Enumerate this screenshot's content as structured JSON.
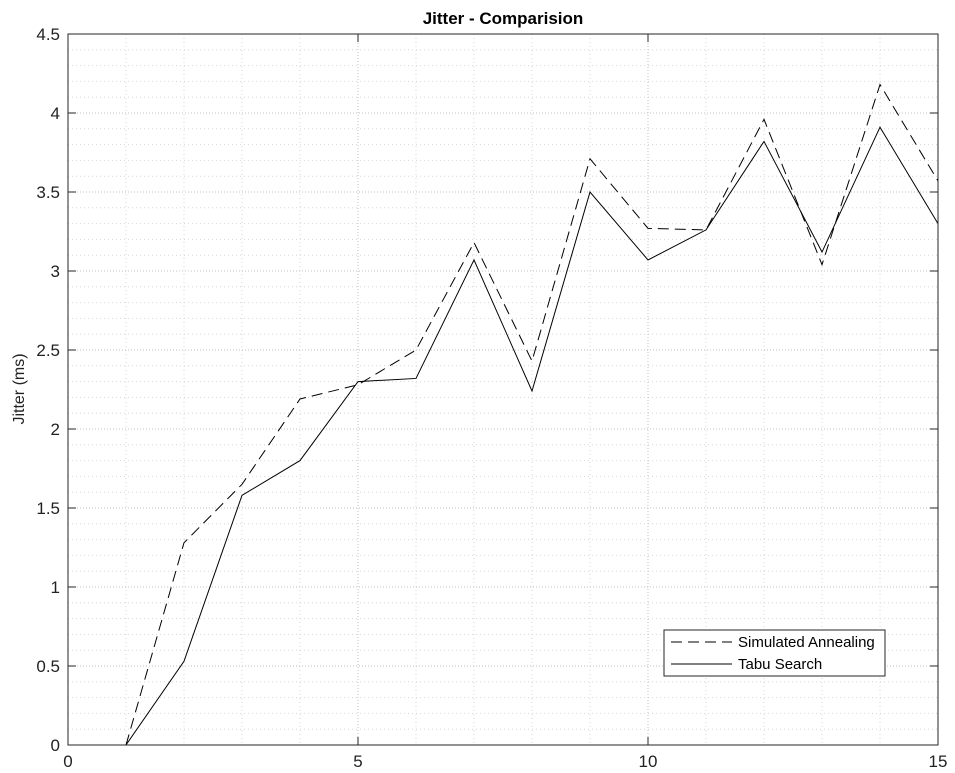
{
  "chart_data": {
    "type": "line",
    "title": "Jitter - Comparision",
    "xlabel": "",
    "ylabel": "Jitter (ms)",
    "xlim": [
      0,
      15
    ],
    "ylim": [
      0,
      4.5
    ],
    "xticks": [
      0,
      5,
      10,
      15
    ],
    "yticks": [
      0,
      0.5,
      1,
      1.5,
      2,
      2.5,
      3,
      3.5,
      4,
      4.5
    ],
    "grid": true,
    "minor_grid": true,
    "legend_position": "bottom-right",
    "series": [
      {
        "name": "Simulated Annealing",
        "style": "dashed",
        "color": "#000000",
        "x": [
          1,
          2,
          3,
          4,
          5,
          6,
          7,
          8,
          9,
          10,
          11,
          12,
          13,
          14,
          15
        ],
        "y": [
          0,
          1.28,
          1.65,
          2.19,
          2.28,
          2.5,
          3.18,
          2.43,
          3.71,
          3.27,
          3.26,
          3.96,
          3.04,
          4.18,
          3.57
        ]
      },
      {
        "name": "Tabu Search",
        "style": "solid",
        "color": "#000000",
        "x": [
          1,
          2,
          3,
          4,
          5,
          6,
          7,
          8,
          9,
          10,
          11,
          12,
          13,
          14,
          15
        ],
        "y": [
          0,
          0.53,
          1.58,
          1.8,
          2.3,
          2.32,
          3.07,
          2.24,
          3.5,
          3.07,
          3.26,
          3.82,
          3.12,
          3.91,
          3.3
        ]
      }
    ]
  }
}
